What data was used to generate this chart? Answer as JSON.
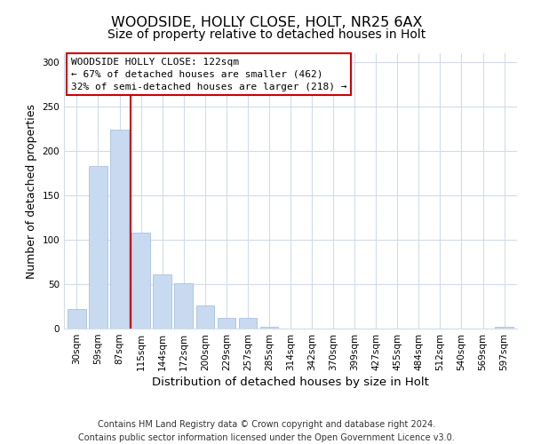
{
  "title": "WOODSIDE, HOLLY CLOSE, HOLT, NR25 6AX",
  "subtitle": "Size of property relative to detached houses in Holt",
  "xlabel": "Distribution of detached houses by size in Holt",
  "ylabel": "Number of detached properties",
  "bar_labels": [
    "30sqm",
    "59sqm",
    "87sqm",
    "115sqm",
    "144sqm",
    "172sqm",
    "200sqm",
    "229sqm",
    "257sqm",
    "285sqm",
    "314sqm",
    "342sqm",
    "370sqm",
    "399sqm",
    "427sqm",
    "455sqm",
    "484sqm",
    "512sqm",
    "540sqm",
    "569sqm",
    "597sqm"
  ],
  "bar_values": [
    22,
    183,
    224,
    108,
    61,
    51,
    26,
    12,
    12,
    2,
    0,
    0,
    0,
    0,
    0,
    0,
    0,
    0,
    0,
    0,
    2
  ],
  "bar_color": "#c8daf0",
  "bar_edge_color": "#a8c0e0",
  "vline_x_index": 3,
  "vline_color": "#cc0000",
  "ylim": [
    0,
    310
  ],
  "yticks": [
    0,
    50,
    100,
    150,
    200,
    250,
    300
  ],
  "annotation_title": "WOODSIDE HOLLY CLOSE: 122sqm",
  "annotation_line1": "← 67% of detached houses are smaller (462)",
  "annotation_line2": "32% of semi-detached houses are larger (218) →",
  "annotation_box_color": "#ffffff",
  "annotation_box_edge": "#cc0000",
  "footer1": "Contains HM Land Registry data © Crown copyright and database right 2024.",
  "footer2": "Contains public sector information licensed under the Open Government Licence v3.0.",
  "bg_color": "#ffffff",
  "grid_color": "#d0dcea",
  "title_fontsize": 11.5,
  "subtitle_fontsize": 10,
  "xlabel_fontsize": 9.5,
  "ylabel_fontsize": 9,
  "tick_fontsize": 7.5,
  "annotation_fontsize": 8,
  "footer_fontsize": 7
}
